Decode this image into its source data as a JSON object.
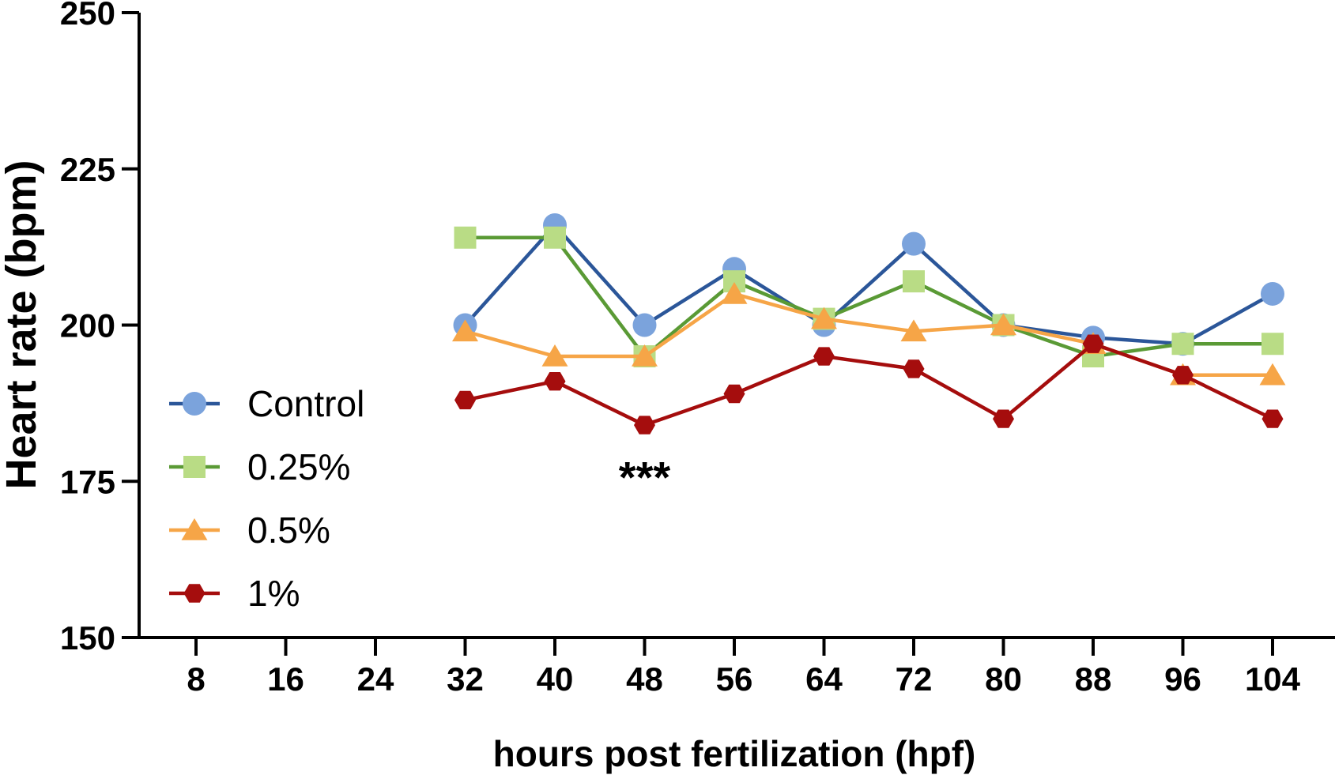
{
  "chart_data": {
    "type": "line",
    "title": "",
    "xlabel": "hours post fertilization (hpf)",
    "ylabel": "Heart rate (bpm)",
    "ylim": [
      150,
      250
    ],
    "yticks": [
      150,
      175,
      200,
      225,
      250
    ],
    "x": [
      8,
      16,
      24,
      32,
      40,
      48,
      56,
      64,
      72,
      80,
      88,
      96,
      104
    ],
    "xtick_labels": [
      "8",
      "16",
      "24",
      "32",
      "40",
      "48",
      "56",
      "64",
      "72",
      "80",
      "88",
      "96",
      "104"
    ],
    "grid": false,
    "legend_position": "left",
    "series": [
      {
        "name": "Control",
        "marker": "circle",
        "line_color": "#2b5699",
        "marker_color": "#7ba3dc",
        "points": [
          [
            32,
            200
          ],
          [
            40,
            216
          ],
          [
            48,
            200
          ],
          [
            56,
            209
          ],
          [
            64,
            200
          ],
          [
            72,
            213
          ],
          [
            80,
            200
          ],
          [
            88,
            198
          ],
          [
            96,
            197
          ],
          [
            104,
            205
          ]
        ]
      },
      {
        "name": "0.25%",
        "marker": "square",
        "line_color": "#5a9a35",
        "marker_color": "#b9dc85",
        "points": [
          [
            32,
            214
          ],
          [
            40,
            214
          ],
          [
            48,
            195
          ],
          [
            56,
            207
          ],
          [
            64,
            201
          ],
          [
            72,
            207
          ],
          [
            80,
            200
          ],
          [
            88,
            195
          ],
          [
            96,
            197
          ],
          [
            104,
            197
          ]
        ]
      },
      {
        "name": "0.5%",
        "marker": "triangle",
        "line_color": "#f6a547",
        "marker_color": "#f6a547",
        "points": [
          [
            32,
            199
          ],
          [
            40,
            195
          ],
          [
            48,
            195
          ],
          [
            56,
            205
          ],
          [
            64,
            201
          ],
          [
            72,
            199
          ],
          [
            80,
            200
          ],
          [
            88,
            197
          ],
          [
            96,
            192
          ],
          [
            104,
            192
          ]
        ]
      },
      {
        "name": "1%",
        "marker": "hexagon",
        "line_color": "#a50d0d",
        "marker_color": "#a50d0d",
        "points": [
          [
            32,
            188
          ],
          [
            40,
            191
          ],
          [
            48,
            184
          ],
          [
            56,
            189
          ],
          [
            64,
            195
          ],
          [
            72,
            193
          ],
          [
            80,
            185
          ],
          [
            88,
            197
          ],
          [
            96,
            192
          ],
          [
            104,
            185
          ]
        ]
      }
    ],
    "annotations": [
      {
        "text": "***",
        "x": 48,
        "y": 177
      }
    ]
  }
}
